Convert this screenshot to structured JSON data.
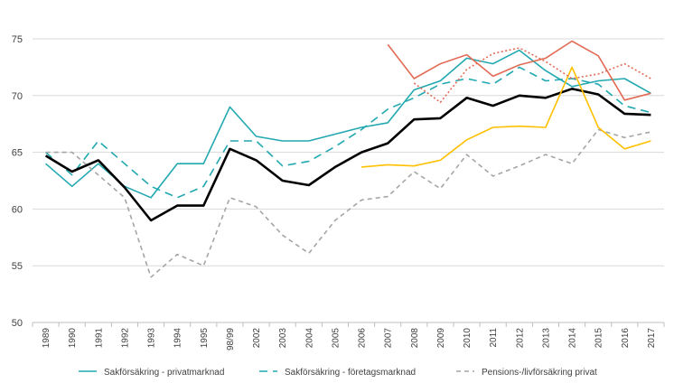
{
  "chart_data": {
    "type": "line",
    "title": "",
    "xlabel": "",
    "ylabel": "",
    "ylim": [
      50,
      75
    ],
    "yticks": [
      50,
      55,
      60,
      65,
      70,
      75
    ],
    "grid": "horizontal",
    "legend_position": "bottom",
    "categories": [
      "1989",
      "1990",
      "1991",
      "1992",
      "1993",
      "1994",
      "1995",
      "98/99",
      "2002",
      "2003",
      "2004",
      "2005",
      "2006",
      "2007",
      "2008",
      "2009",
      "2010",
      "2011",
      "2012",
      "2013",
      "2014",
      "2015",
      "2016",
      "2017"
    ],
    "series": [
      {
        "name": "Sakförsäkring - privatmarknad",
        "color": "#21A8B0",
        "style": "solid",
        "width": 1.6,
        "values": [
          64.0,
          62.0,
          64.0,
          62.0,
          61.0,
          64.0,
          64.0,
          69.0,
          66.4,
          66.0,
          66.0,
          66.6,
          67.2,
          67.6,
          70.5,
          71.3,
          73.3,
          72.8,
          74.0,
          72.2,
          70.8,
          71.3,
          71.5,
          70.2
        ]
      },
      {
        "name": "Sakförsäkring - företagsmarknad",
        "color": "#21A8B0",
        "style": "dashed",
        "width": 1.6,
        "values": [
          65.0,
          63.0,
          66.0,
          64.0,
          62.0,
          61.0,
          62.0,
          66.0,
          66.0,
          63.8,
          64.2,
          65.5,
          67.0,
          68.8,
          69.8,
          71.0,
          71.5,
          71.0,
          72.5,
          71.3,
          71.5,
          71.0,
          69.1,
          68.5
        ]
      },
      {
        "name": "Pensions-/livförsäkring  privat",
        "color": "#A5A5A5",
        "style": "dashed-gray",
        "width": 1.6,
        "values": [
          65.0,
          65.0,
          63.0,
          61.0,
          54.0,
          56.0,
          55.0,
          61.0,
          60.2,
          57.7,
          56.1,
          59.0,
          60.8,
          61.1,
          63.3,
          61.8,
          64.8,
          62.9,
          63.8,
          64.8,
          64.0,
          67.0,
          66.3,
          66.8
        ]
      },
      {
        "name": "",
        "color": "#000000",
        "style": "solid",
        "width": 2.6,
        "values": [
          64.7,
          63.3,
          64.3,
          61.9,
          59.0,
          60.3,
          60.3,
          65.3,
          64.3,
          62.5,
          62.1,
          63.7,
          65.0,
          65.8,
          67.9,
          68.0,
          69.8,
          69.1,
          70.0,
          69.8,
          70.6,
          70.1,
          68.4,
          68.3
        ]
      },
      {
        "name": "",
        "color": "#FFC000",
        "style": "solid",
        "width": 1.6,
        "values": [
          null,
          null,
          null,
          null,
          null,
          null,
          null,
          null,
          null,
          null,
          null,
          null,
          63.7,
          63.9,
          63.8,
          64.3,
          66.1,
          67.2,
          67.3,
          67.2,
          72.5,
          67.2,
          65.3,
          66.0
        ]
      },
      {
        "name": "",
        "color": "#E26B55",
        "style": "solid",
        "width": 1.6,
        "values": [
          null,
          null,
          null,
          null,
          null,
          null,
          null,
          null,
          null,
          null,
          null,
          null,
          null,
          74.5,
          71.5,
          72.8,
          73.6,
          71.7,
          72.7,
          73.3,
          74.8,
          73.5,
          69.6,
          70.2
        ]
      },
      {
        "name": "",
        "color": "#E26B55",
        "style": "dotted",
        "width": 1.6,
        "values": [
          null,
          null,
          null,
          null,
          null,
          null,
          null,
          null,
          null,
          null,
          null,
          null,
          null,
          null,
          71.1,
          69.4,
          72.3,
          73.7,
          74.2,
          73.0,
          71.5,
          71.9,
          72.8,
          71.5
        ]
      }
    ]
  }
}
